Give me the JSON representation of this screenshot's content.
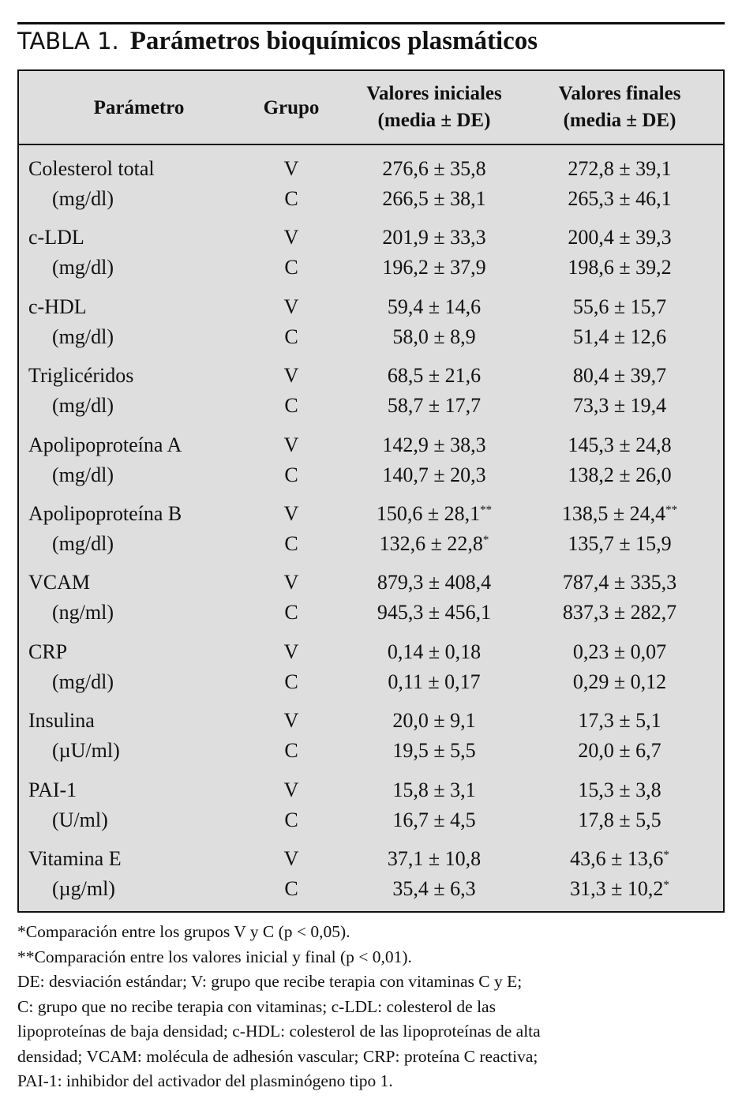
{
  "header": {
    "label": "TABLA 1.",
    "title": "Parámetros bioquímicos plasmáticos"
  },
  "table": {
    "columns": [
      "Parámetro",
      "Grupo",
      "Valores iniciales",
      "Valores finales"
    ],
    "column_notes": [
      null,
      null,
      "(media ± DE)",
      "(media ± DE)"
    ],
    "rows": [
      {
        "param": "Colesterol total",
        "unit": "(mg/dl)",
        "groups": [
          {
            "group": "V",
            "initial": "276,6 ± 35,8",
            "final": "272,8 ± 39,1"
          },
          {
            "group": "C",
            "initial": "266,5 ± 38,1",
            "final": "265,3 ± 46,1"
          }
        ]
      },
      {
        "param": "c-LDL",
        "unit": "(mg/dl)",
        "groups": [
          {
            "group": "V",
            "initial": "201,9 ± 33,3",
            "final": "200,4 ± 39,3"
          },
          {
            "group": "C",
            "initial": "196,2 ± 37,9",
            "final": "198,6 ± 39,2"
          }
        ]
      },
      {
        "param": "c-HDL",
        "unit": "(mg/dl)",
        "groups": [
          {
            "group": "V",
            "initial": "59,4 ± 14,6",
            "final": "55,6 ± 15,7"
          },
          {
            "group": "C",
            "initial": "58,0 ± 8,9",
            "final": "51,4 ± 12,6"
          }
        ]
      },
      {
        "param": "Triglicéridos",
        "unit": "(mg/dl)",
        "groups": [
          {
            "group": "V",
            "initial": "68,5 ± 21,6",
            "final": "80,4 ± 39,7"
          },
          {
            "group": "C",
            "initial": "58,7 ± 17,7",
            "final": "73,3 ± 19,4"
          }
        ]
      },
      {
        "param": "Apolipoproteína A",
        "unit": "(mg/dl)",
        "groups": [
          {
            "group": "V",
            "initial": "142,9 ± 38,3",
            "final": "145,3 ± 24,8"
          },
          {
            "group": "C",
            "initial": "140,7 ± 20,3",
            "final": "138,2 ± 26,0"
          }
        ]
      },
      {
        "param": "Apolipoproteína B",
        "unit": "(mg/dl)",
        "groups": [
          {
            "group": "V",
            "initial": "150,6 ± 28,1",
            "initial_note": "**",
            "final": "138,5 ± 24,4",
            "final_note": "**"
          },
          {
            "group": "C",
            "initial": "132,6 ± 22,8",
            "initial_note": "*",
            "final": "135,7 ± 15,9"
          }
        ]
      },
      {
        "param": "VCAM",
        "unit": "(ng/ml)",
        "groups": [
          {
            "group": "V",
            "initial": "879,3 ± 408,4",
            "final": "787,4 ± 335,3"
          },
          {
            "group": "C",
            "initial": "945,3 ± 456,1",
            "final": "837,3 ± 282,7"
          }
        ]
      },
      {
        "param": "CRP",
        "unit": "(mg/dl)",
        "groups": [
          {
            "group": "V",
            "initial": "0,14 ± 0,18",
            "final": "0,23 ± 0,07"
          },
          {
            "group": "C",
            "initial": "0,11 ± 0,17",
            "final": "0,29 ± 0,12"
          }
        ]
      },
      {
        "param": "Insulina",
        "unit": "(µU/ml)",
        "groups": [
          {
            "group": "V",
            "initial": "20,0 ± 9,1",
            "final": "17,3 ± 5,1"
          },
          {
            "group": "C",
            "initial": "19,5 ± 5,5",
            "final": "20,0 ± 6,7"
          }
        ]
      },
      {
        "param": "PAI-1",
        "unit": "(U/ml)",
        "groups": [
          {
            "group": "V",
            "initial": "15,8 ± 3,1",
            "final": "15,3 ± 3,8"
          },
          {
            "group": "C",
            "initial": "16,7 ± 4,5",
            "final": "17,8 ± 5,5"
          }
        ]
      },
      {
        "param": "Vitamina E",
        "unit": "(µg/ml)",
        "groups": [
          {
            "group": "V",
            "initial": "37,1 ± 10,8",
            "final": "43,6 ± 13,6",
            "final_note": "*"
          },
          {
            "group": "C",
            "initial": "35,4 ± 6,3",
            "final": "31,3 ± 10,2",
            "final_note": "*"
          }
        ]
      }
    ]
  },
  "footnotes": [
    "*Comparación entre los grupos V y C (p < 0,05).",
    "**Comparación entre los valores inicial y final (p < 0,01).",
    "DE: desviación estándar; V: grupo que recibe terapia con vitaminas C y E;",
    "C: grupo que no recibe terapia con vitaminas; c-LDL: colesterol de las",
    "lipoproteínas de baja densidad; c-HDL: colesterol de las lipoproteínas de alta",
    "densidad; VCAM: molécula de adhesión vascular; CRP: proteína C reactiva;",
    "PAI-1: inhibidor del activador del plasminógeno tipo 1."
  ]
}
